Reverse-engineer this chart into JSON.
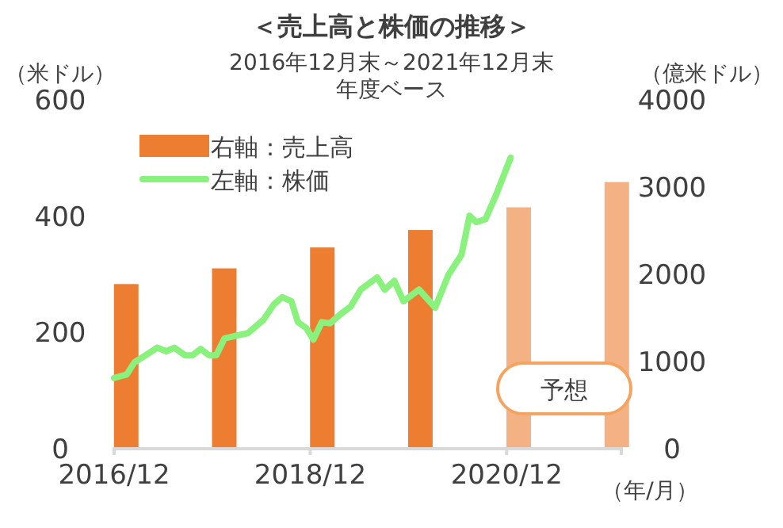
{
  "chart_data": {
    "type": "bar",
    "title": "＜売上高と株価の推移＞",
    "subtitle": "2016年12月末～2021年12月末",
    "ylabel": "（米ドル）",
    "y2label": "（億米ドル）",
    "xlabel": "（年/月）",
    "xlim": [
      "2016-12",
      "2022-02"
    ],
    "xticks": [
      {
        "value": "2016-12",
        "label": "2016/12"
      },
      {
        "value": "2018-12",
        "label": "2018/12"
      },
      {
        "value": "2020-12",
        "label": "2020/12"
      },
      {
        "value": "2022-02",
        "label": null
      }
    ],
    "ylim": [
      0,
      600
    ],
    "yticks": [
      0,
      200,
      400,
      600
    ],
    "y2lim": [
      0,
      4000
    ],
    "y2ticks": [
      0,
      1000,
      2000,
      3000,
      4000
    ],
    "legend": "top left",
    "series": [
      {
        "name": "右軸：売上高",
        "axis": "y2",
        "x": [
          "2017-01-15",
          "2018-01-15",
          "2019-01-15",
          "2020-01-15",
          "2021-01-15",
          "2022-01-15"
        ],
        "colors": [
          "#ed7d31",
          "#ed7d31",
          "#ed7d31",
          "#ed7d31",
          "#f4b183",
          "#f4b183"
        ],
        "values": [
          1870,
          2050,
          2290,
          2490,
          2750,
          3040
        ]
      },
      {
        "name": "左軸：株価",
        "type": "line",
        "axis": "y",
        "color": "#88f27c",
        "x": [
          "2016-12-01",
          "2017-01-17",
          "2017-02-15",
          "2017-04-04",
          "2017-05-10",
          "2017-06-13",
          "2017-07-13",
          "2017-08-22",
          "2017-09-19",
          "2017-10-19",
          "2017-11-19",
          "2017-12-16",
          "2018-01-16",
          "2018-03-04",
          "2018-04-13",
          "2018-06-10",
          "2018-07-19",
          "2018-08-19",
          "2018-09-22",
          "2018-10-16",
          "2018-11-16",
          "2018-12-13",
          "2019-01-13",
          "2019-02-13",
          "2019-03-22",
          "2019-05-01",
          "2019-06-07",
          "2019-08-07",
          "2019-09-04",
          "2019-10-10",
          "2019-11-13",
          "2020-01-10",
          "2020-03-10",
          "2020-04-28",
          "2020-06-16",
          "2020-07-16",
          "2020-08-10",
          "2020-09-13",
          "2020-10-22",
          "2020-12-16"
        ],
        "values": [
          119,
          125,
          146,
          160,
          171,
          165,
          171,
          158,
          158,
          169,
          158,
          158,
          187,
          192,
          196,
          219,
          246,
          258,
          251,
          215,
          205,
          185,
          215,
          213,
          228,
          242,
          271,
          292,
          271,
          286,
          251,
          271,
          240,
          296,
          331,
          398,
          387,
          392,
          433,
          498
        ]
      }
    ],
    "annotations": [
      "年度ベース",
      "予想"
    ]
  }
}
